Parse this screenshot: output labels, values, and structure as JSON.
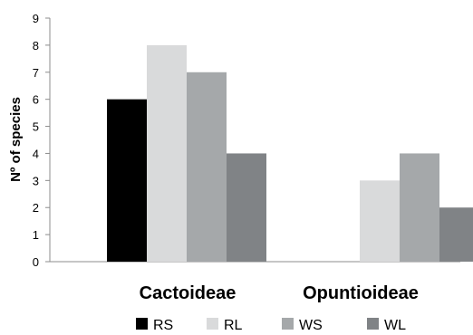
{
  "chart_data": {
    "type": "bar",
    "ylabel": "Nº of species",
    "xlabel": "",
    "ylim": [
      0,
      9
    ],
    "yticks": [
      "0",
      "1",
      "2",
      "3",
      "4",
      "5",
      "6",
      "7",
      "8",
      "9"
    ],
    "categories": [
      "Cactoideae",
      "Opuntioideae"
    ],
    "series": [
      {
        "name": "RS",
        "color": "#000000",
        "values": [
          6,
          0
        ]
      },
      {
        "name": "RL",
        "color": "#d9dadb",
        "values": [
          8,
          3
        ]
      },
      {
        "name": "WS",
        "color": "#a5a8aa",
        "values": [
          7,
          4
        ]
      },
      {
        "name": "WL",
        "color": "#808386",
        "values": [
          4,
          2
        ]
      }
    ],
    "grid": false,
    "legend_position": "bottom"
  }
}
